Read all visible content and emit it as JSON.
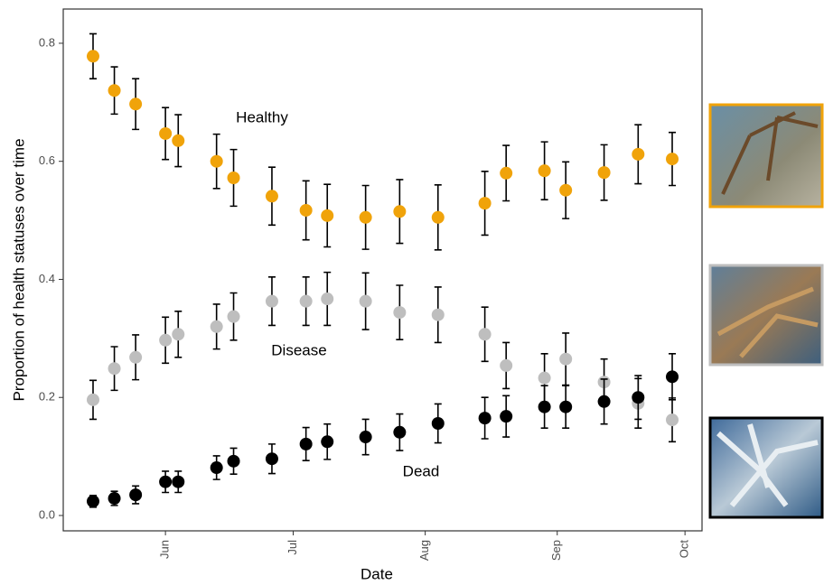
{
  "chart_data": {
    "type": "scatter",
    "xlabel": "Date",
    "ylabel": "Proportion of health statuses over time",
    "x": [
      135,
      140,
      145,
      152,
      155,
      164,
      168,
      177,
      185,
      190,
      199,
      207,
      216,
      227,
      232,
      241,
      246,
      255,
      263,
      271
    ],
    "xlim": [
      128,
      278
    ],
    "xticks": [
      {
        "value": 152,
        "label": "Jun"
      },
      {
        "value": 182,
        "label": "Jul"
      },
      {
        "value": 213,
        "label": "Aug"
      },
      {
        "value": 244,
        "label": "Sep"
      },
      {
        "value": 274,
        "label": "Oct"
      }
    ],
    "ylim": [
      -0.026,
      0.858
    ],
    "yticks": [
      {
        "value": 0,
        "label": "0.0"
      },
      0.2,
      0.4,
      0.6,
      0.8
    ],
    "grid": false,
    "series": [
      {
        "name": "Healthy",
        "color": "#f0a30a",
        "values": [
          0.778,
          0.72,
          0.697,
          0.647,
          0.635,
          0.6,
          0.572,
          0.541,
          0.517,
          0.508,
          0.505,
          0.515,
          0.505,
          0.529,
          0.58,
          0.584,
          0.551,
          0.581,
          0.612,
          0.604
        ],
        "errors": [
          0.038,
          0.04,
          0.043,
          0.044,
          0.044,
          0.046,
          0.048,
          0.049,
          0.05,
          0.053,
          0.054,
          0.054,
          0.055,
          0.054,
          0.047,
          0.049,
          0.048,
          0.047,
          0.05,
          0.045
        ]
      },
      {
        "name": "Disease",
        "color": "#bebebe",
        "values": [
          0.196,
          0.249,
          0.268,
          0.297,
          0.307,
          0.32,
          0.337,
          0.363,
          0.363,
          0.367,
          0.363,
          0.344,
          0.34,
          0.307,
          0.254,
          0.233,
          0.265,
          0.226,
          0.19,
          0.162
        ],
        "errors": [
          0.033,
          0.037,
          0.038,
          0.039,
          0.039,
          0.038,
          0.04,
          0.041,
          0.041,
          0.045,
          0.048,
          0.046,
          0.047,
          0.046,
          0.039,
          0.041,
          0.044,
          0.039,
          0.042,
          0.037
        ]
      },
      {
        "name": "Dead",
        "color": "#000000",
        "values": [
          0.024,
          0.029,
          0.035,
          0.057,
          0.057,
          0.081,
          0.092,
          0.096,
          0.121,
          0.125,
          0.133,
          0.141,
          0.156,
          0.165,
          0.168,
          0.184,
          0.184,
          0.193,
          0.2,
          0.235
        ],
        "errors": [
          0.01,
          0.012,
          0.015,
          0.018,
          0.018,
          0.02,
          0.022,
          0.025,
          0.028,
          0.03,
          0.03,
          0.031,
          0.033,
          0.035,
          0.035,
          0.036,
          0.036,
          0.038,
          0.037,
          0.039
        ]
      }
    ]
  }
}
